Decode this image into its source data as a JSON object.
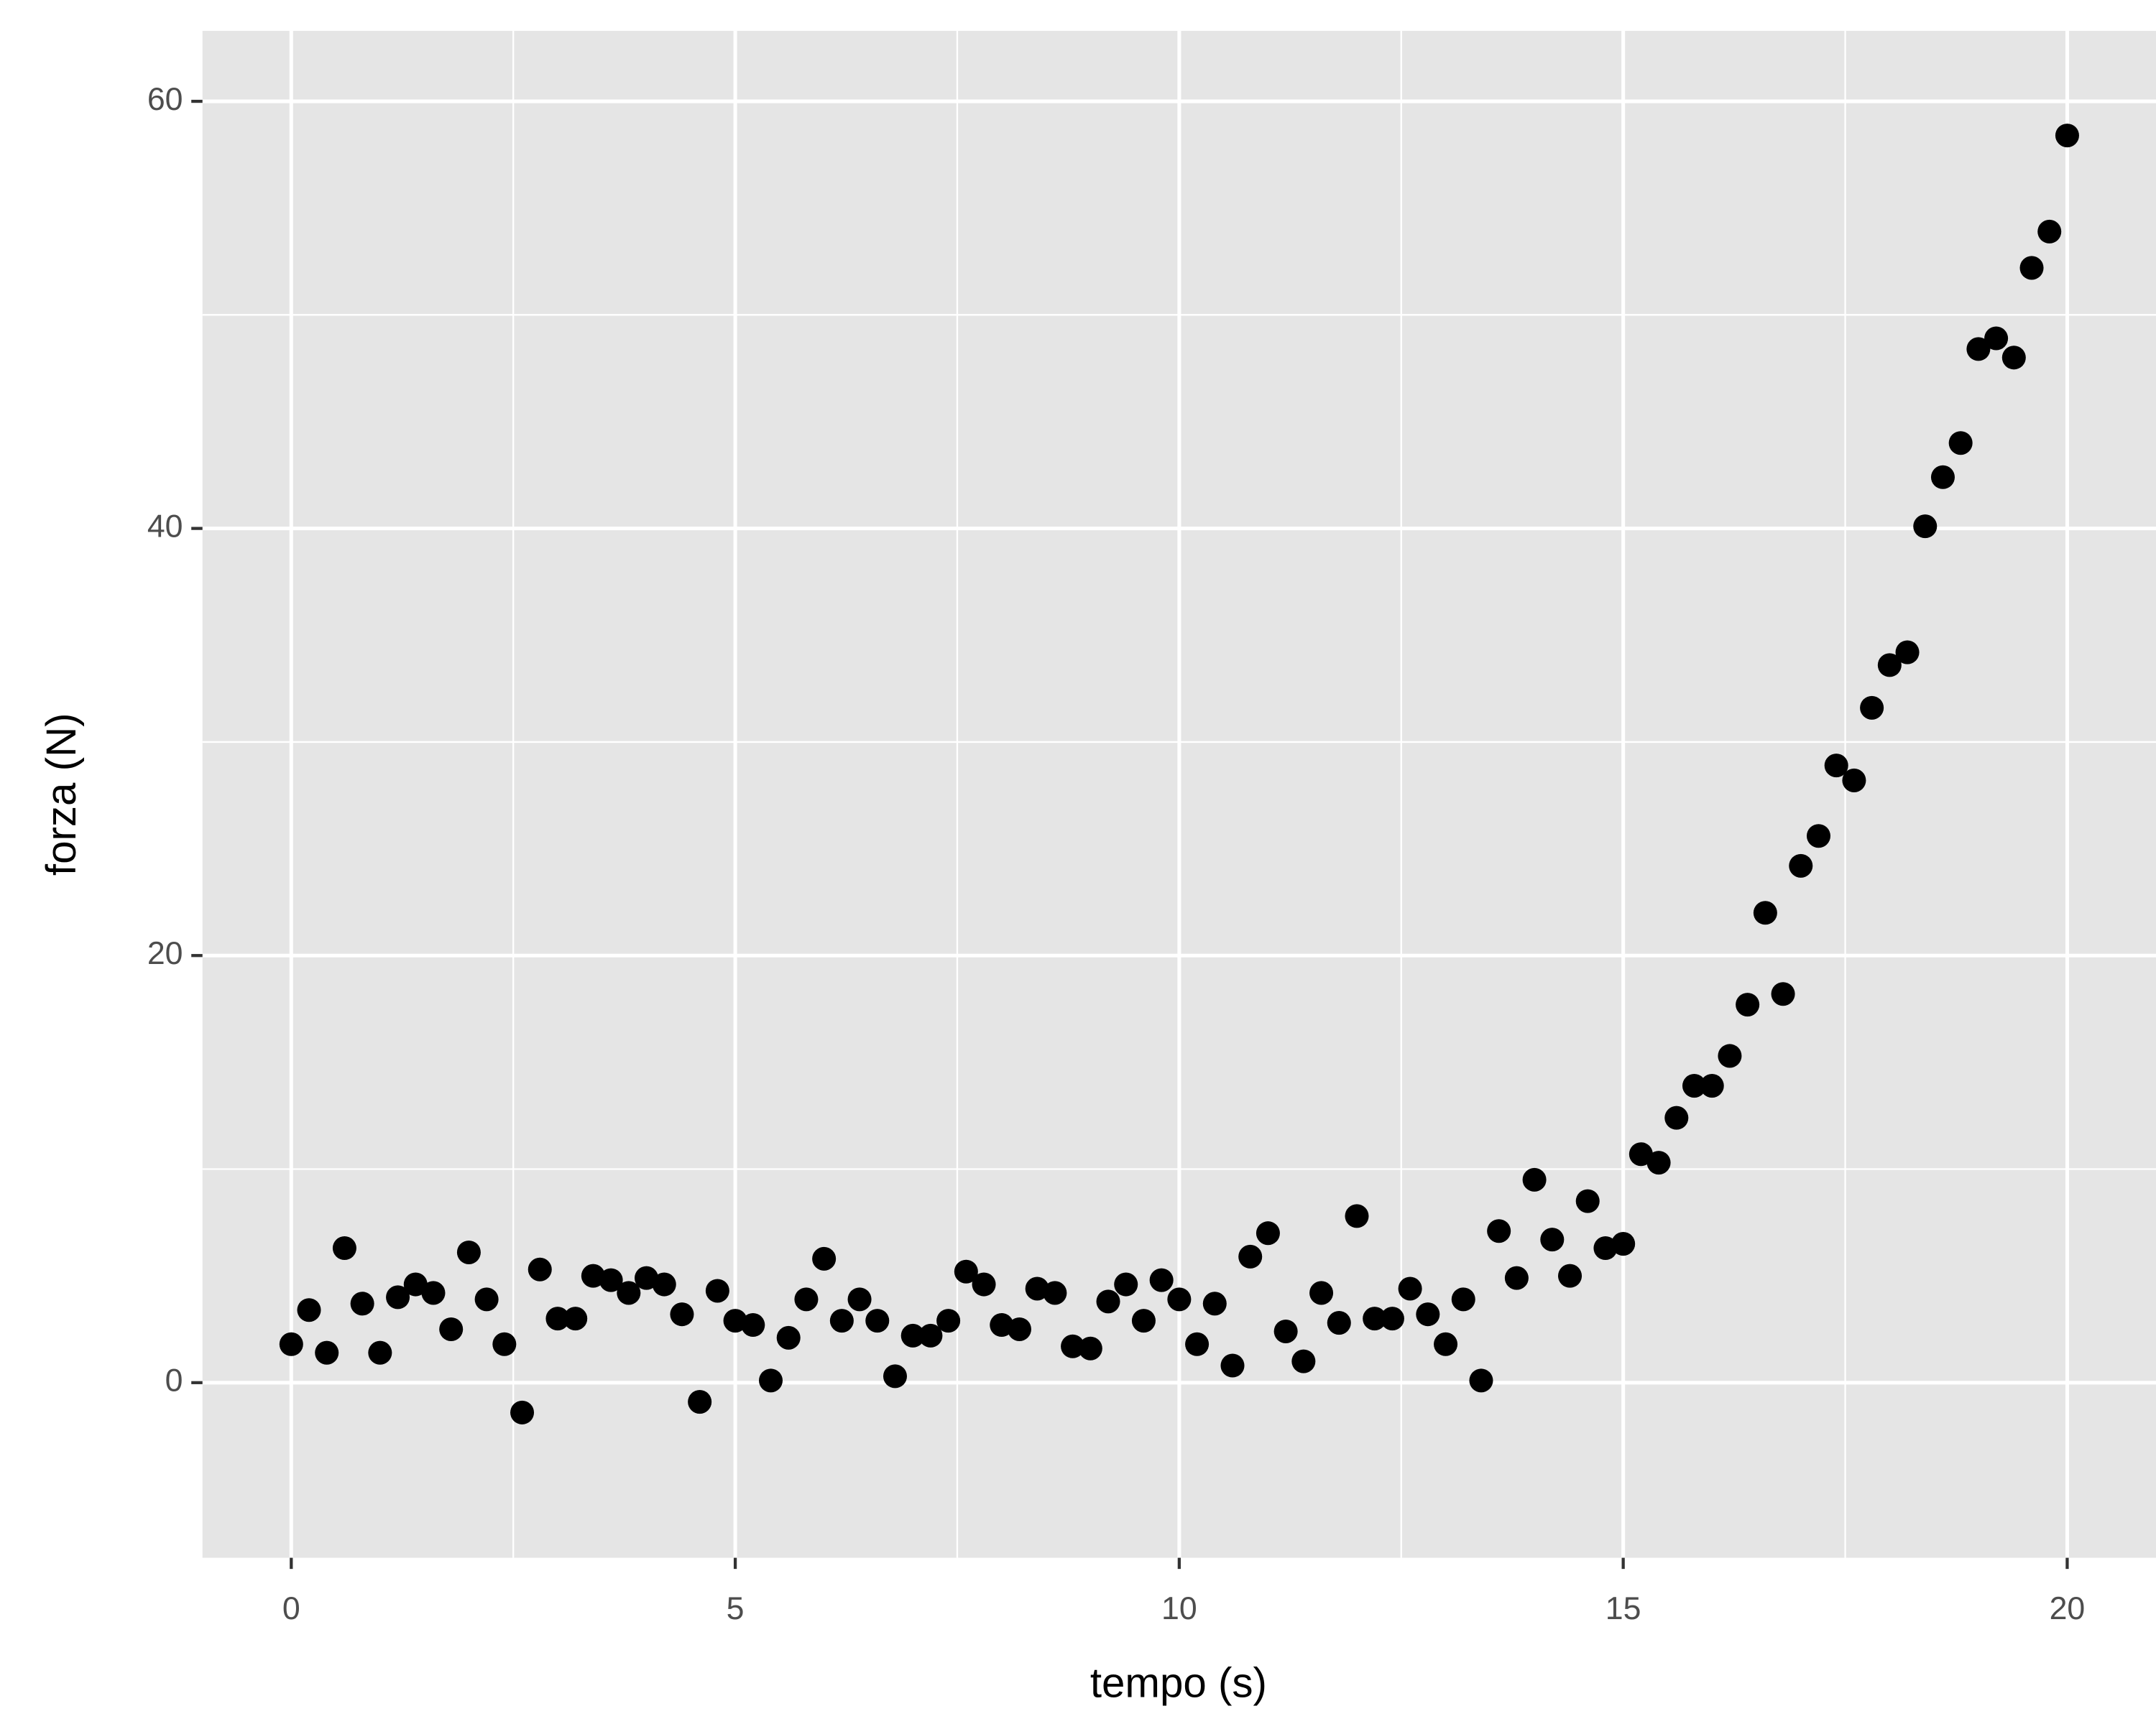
{
  "chart_data": {
    "type": "scatter",
    "x_label": "tempo (s)",
    "y_label": "forza (N)",
    "x": [
      0,
      0.2,
      0.4,
      0.6,
      0.8,
      1,
      1.2,
      1.4,
      1.6,
      1.8,
      2,
      2.2,
      2.4,
      2.6,
      2.8,
      3,
      3.2,
      3.4,
      3.6,
      3.8,
      4,
      4.2,
      4.4,
      4.6,
      4.8,
      5,
      5.2,
      5.4,
      5.6,
      5.8,
      6,
      6.2,
      6.4,
      6.6,
      6.8,
      7,
      7.2,
      7.4,
      7.6,
      7.8,
      8,
      8.2,
      8.4,
      8.6,
      8.8,
      9,
      9.2,
      9.4,
      9.6,
      9.8,
      10,
      10.2,
      10.4,
      10.6,
      10.8,
      11,
      11.2,
      11.4,
      11.6,
      11.8,
      12,
      12.2,
      12.4,
      12.6,
      12.8,
      13,
      13.2,
      13.4,
      13.6,
      13.8,
      14,
      14.2,
      14.4,
      14.6,
      14.8,
      15,
      15.2,
      15.4,
      15.6,
      15.8,
      16,
      16.2,
      16.4,
      16.6,
      16.8,
      17,
      17.2,
      17.4,
      17.6,
      17.8,
      18,
      18.2,
      18.4,
      18.6,
      18.8,
      19,
      19.2,
      19.4,
      19.6,
      19.8,
      20
    ],
    "values": [
      1.8,
      3.4,
      1.4,
      6.3,
      3.7,
      1.4,
      4.0,
      4.6,
      4.2,
      2.5,
      6.1,
      3.9,
      1.8,
      -1.4,
      5.3,
      3.0,
      3.0,
      5.0,
      4.8,
      4.2,
      4.9,
      4.6,
      3.2,
      -0.9,
      4.3,
      2.9,
      2.7,
      0.1,
      2.1,
      3.9,
      5.8,
      2.9,
      3.9,
      2.9,
      0.3,
      2.2,
      2.2,
      2.9,
      5.2,
      4.6,
      2.7,
      2.5,
      4.4,
      4.2,
      1.7,
      1.6,
      3.8,
      4.6,
      2.9,
      4.8,
      3.9,
      1.8,
      3.7,
      0.8,
      5.9,
      7.0,
      2.4,
      1.0,
      4.2,
      2.8,
      7.8,
      3.0,
      3.0,
      4.4,
      3.2,
      1.8,
      3.9,
      0.1,
      7.1,
      4.9,
      9.5,
      6.7,
      5.0,
      8.5,
      6.3,
      6.5,
      10.7,
      10.3,
      12.4,
      13.9,
      13.9,
      15.3,
      17.7,
      22.0,
      18.2,
      24.2,
      25.6,
      28.9,
      28.2,
      31.6,
      33.6,
      34.2,
      40.1,
      42.4,
      44.0,
      48.4,
      48.9,
      48.0,
      52.2,
      53.9,
      58.4
    ],
    "color": "#000000",
    "xlim": [
      -1,
      21
    ],
    "ylim": [
      -8.2,
      63.3
    ],
    "xticks": [
      0,
      5,
      10,
      15,
      20
    ],
    "yticks": [
      0,
      20,
      40,
      60
    ],
    "xminor": [
      2.5,
      7.5,
      12.5,
      17.5
    ],
    "yminor": [
      10,
      30,
      50
    ],
    "grid": true,
    "panel_color": "#e5e5e5"
  }
}
